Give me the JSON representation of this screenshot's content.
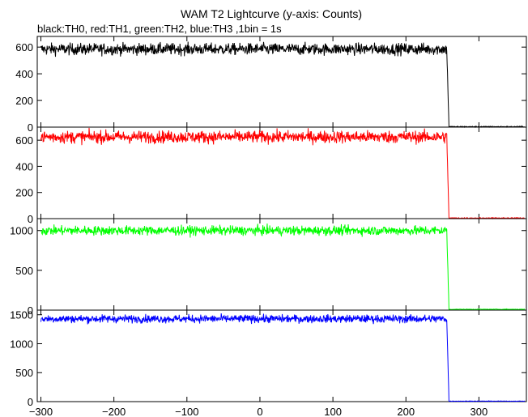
{
  "chart_data": {
    "type": "line",
    "title": "WAM T2 Lightcurve (y-axis: Counts)",
    "subtitle": "black:TH0, red:TH1, green:TH2, blue:TH3 ,1bin = 1s",
    "xlim": [
      -305,
      365
    ],
    "x_ticks": [
      -300,
      -200,
      -100,
      0,
      100,
      200,
      300
    ],
    "x_tick_labels": [
      "−300",
      "−200",
      "−100",
      "0",
      "100",
      "200",
      "300"
    ],
    "cutoff_time": 258,
    "panels": [
      {
        "id": "th0",
        "color": "#000000",
        "ylim": [
          0,
          680
        ],
        "y_ticks": [
          0,
          200,
          400,
          600
        ],
        "y_tick_labels": [
          "0",
          "200",
          "400",
          "600"
        ],
        "level": 585,
        "noise": 22,
        "after_level": 3
      },
      {
        "id": "th1",
        "color": "#ff0000",
        "ylim": [
          0,
          700
        ],
        "y_ticks": [
          0,
          200,
          400,
          600
        ],
        "y_tick_labels": [
          "0",
          "200",
          "400",
          "600"
        ],
        "level": 625,
        "noise": 24,
        "after_level": 4
      },
      {
        "id": "th2",
        "color": "#00ff00",
        "ylim": [
          0,
          1150
        ],
        "y_ticks": [
          0,
          500,
          1000
        ],
        "y_tick_labels": [
          "0",
          "500",
          "1000"
        ],
        "level": 1000,
        "noise": 30,
        "after_level": 10
      },
      {
        "id": "th3",
        "color": "#0000ff",
        "ylim": [
          0,
          1580
        ],
        "y_ticks": [
          0,
          500,
          1000,
          1500
        ],
        "y_tick_labels": [
          "0",
          "500",
          "1000",
          "1500"
        ],
        "level": 1430,
        "noise": 35,
        "after_level": 8
      }
    ],
    "grid": false,
    "legend": "none"
  }
}
